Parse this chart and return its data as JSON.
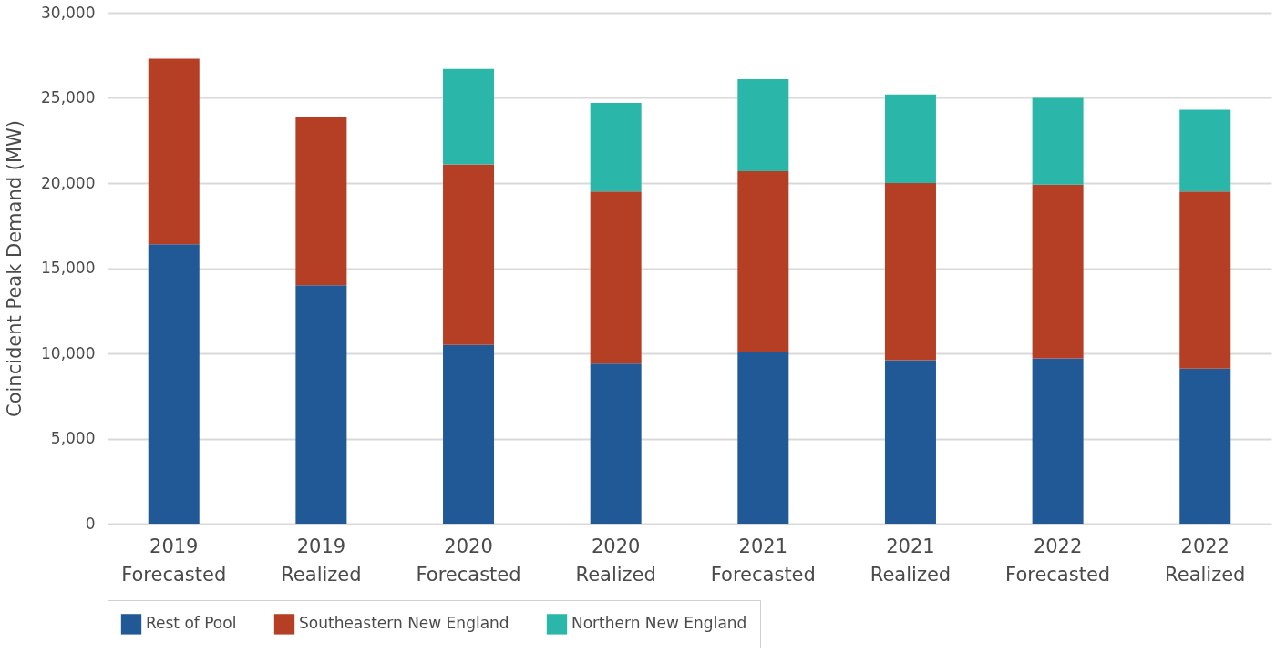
{
  "chart_data": {
    "type": "bar",
    "stacked": true,
    "ylabel": "Coincident Peak Demand (MW)",
    "categories": [
      "2019 Forecasted",
      "2019 Realized",
      "2020 Forecasted",
      "2020 Realized",
      "2021 Forecasted",
      "2021 Realized",
      "2022 Forecasted",
      "2022 Realized"
    ],
    "series": [
      {
        "name": "Rest of Pool",
        "color": "#215896",
        "values": [
          16400,
          14000,
          10500,
          9400,
          10100,
          9600,
          9700,
          9100
        ]
      },
      {
        "name": "Southeastern New England",
        "color": "#b53f25",
        "values": [
          10900,
          9900,
          10600,
          10100,
          10600,
          10400,
          10200,
          10400
        ]
      },
      {
        "name": "Northern New England",
        "color": "#2ab7a9",
        "values": [
          null,
          null,
          5600,
          5200,
          5400,
          5200,
          5100,
          4800
        ]
      }
    ],
    "ylim": [
      0,
      30000
    ],
    "yticks": [
      0,
      {
        "value": 5000,
        "label": "5,000"
      },
      {
        "value": 10000,
        "label": "10,000"
      },
      {
        "value": 15000,
        "label": "15,000"
      },
      {
        "value": 20000,
        "label": "20,000"
      },
      {
        "value": 25000,
        "label": "25,000"
      },
      {
        "value": 30000,
        "label": "30,000"
      }
    ],
    "grid": "y",
    "legend": "bottom"
  }
}
